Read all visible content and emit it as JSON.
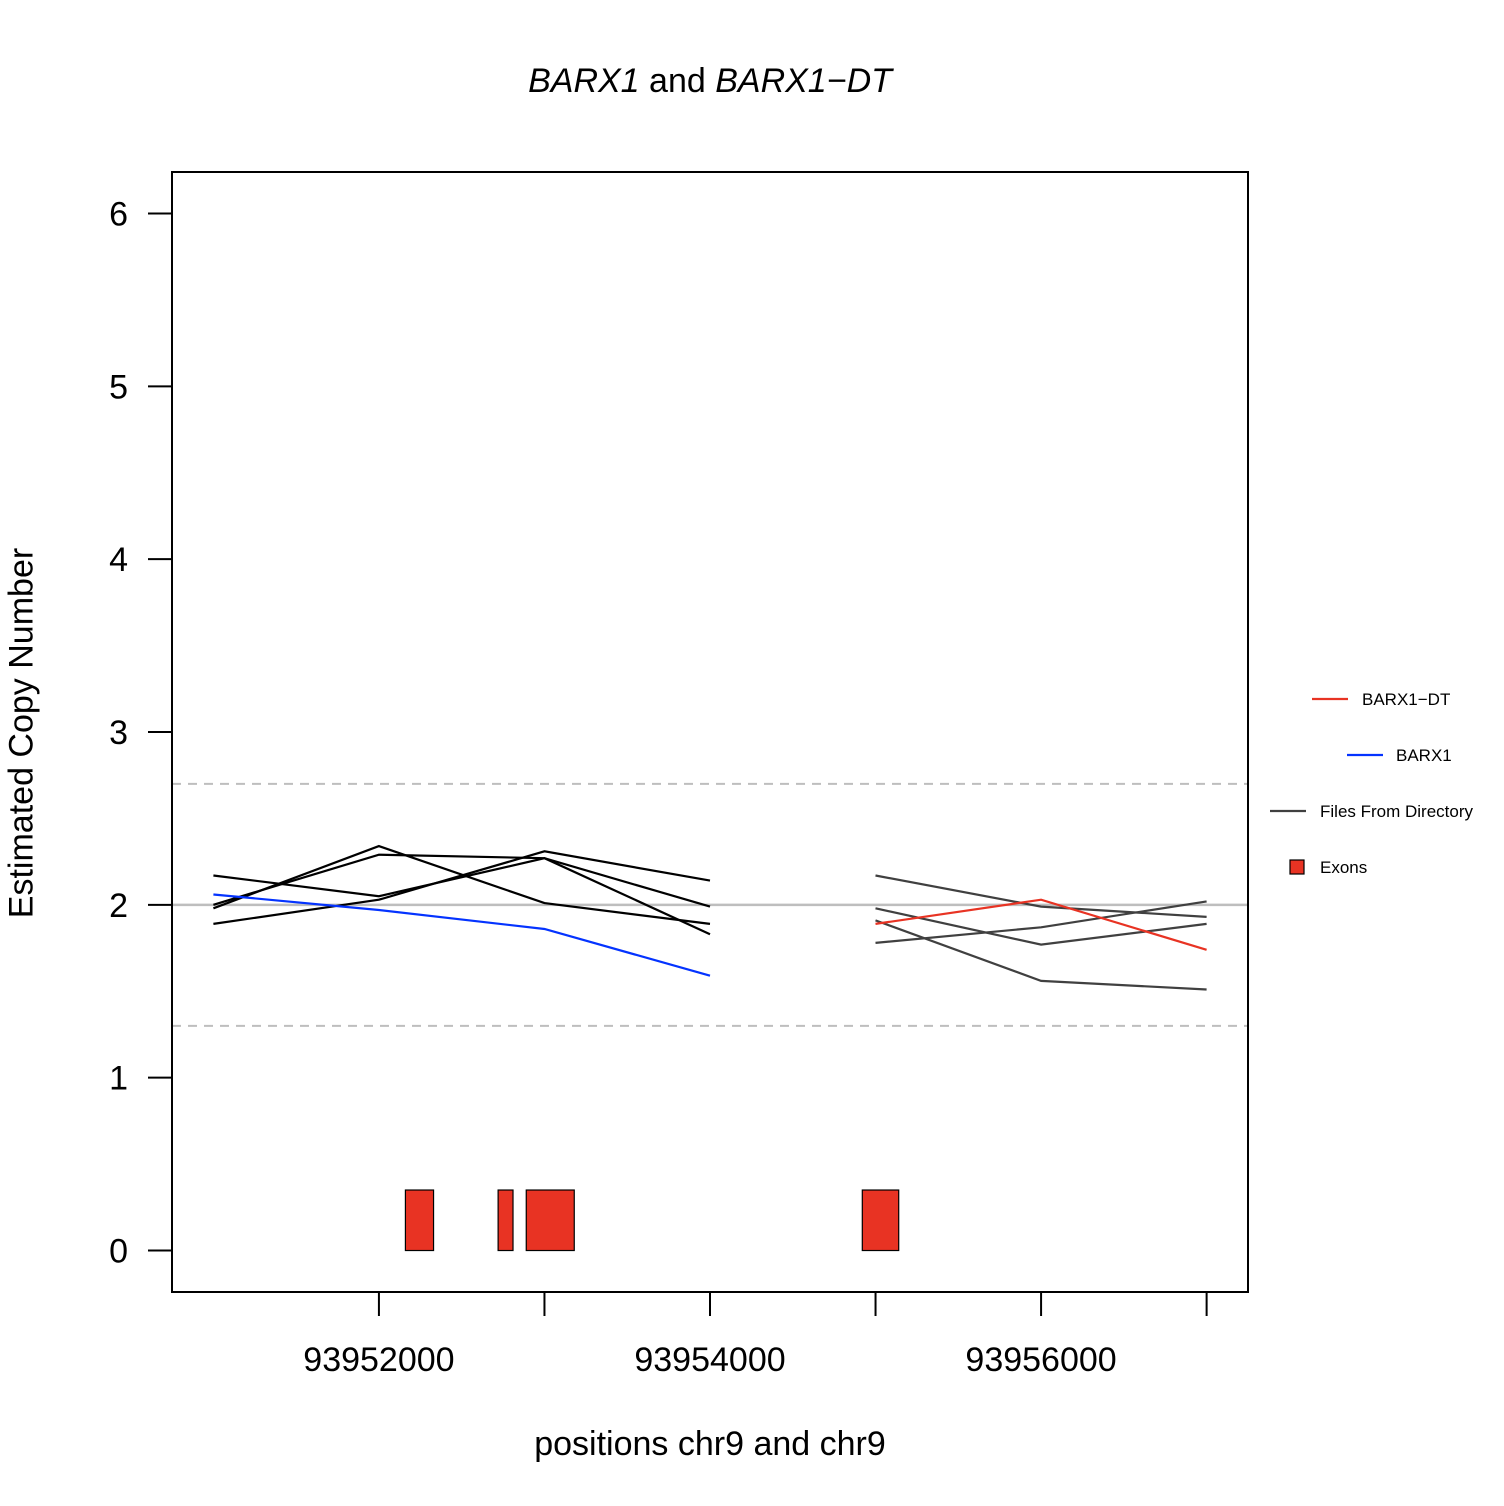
{
  "chart_data": {
    "type": "line",
    "title": {
      "gene1": "BARX1",
      "join": " and ",
      "gene2": "BARX1−DT"
    },
    "xlabel": "positions chr9 and chr9",
    "ylabel": "Estimated Copy Number",
    "xlim": [
      93950750,
      93957250
    ],
    "ylim": [
      -0.24,
      6.24
    ],
    "x_ticks": [
      93952000,
      93953000,
      93954000,
      93955000,
      93956000,
      93957000
    ],
    "x_tick_labels": [
      {
        "value": 93952000,
        "label": "93952000"
      },
      {
        "value": 93954000,
        "label": "93954000"
      },
      {
        "value": 93956000,
        "label": "93956000"
      }
    ],
    "y_ticks": [
      0,
      1,
      2,
      3,
      4,
      5,
      6
    ],
    "reference_lines": [
      {
        "y": 2.0,
        "style": "solid",
        "color": "#bebebe"
      },
      {
        "y": 2.7,
        "style": "dashed",
        "color": "#bebebe"
      },
      {
        "y": 1.3,
        "style": "dashed",
        "color": "#bebebe"
      }
    ],
    "series": [
      {
        "group": "Files From Directory",
        "color": "#000000",
        "x": [
          93951000,
          93952000,
          93953000,
          93954000
        ],
        "y": [
          2.17,
          2.05,
          2.27,
          1.83
        ]
      },
      {
        "group": "Files From Directory",
        "color": "#000000",
        "x": [
          93951000,
          93952000,
          93953000,
          93954000
        ],
        "y": [
          1.98,
          2.34,
          2.01,
          1.89
        ]
      },
      {
        "group": "Files From Directory",
        "color": "#000000",
        "x": [
          93951000,
          93952000,
          93953000,
          93954000
        ],
        "y": [
          2.0,
          2.29,
          2.27,
          1.99
        ]
      },
      {
        "group": "Files From Directory",
        "color": "#000000",
        "x": [
          93951000,
          93952000,
          93953000,
          93954000
        ],
        "y": [
          1.89,
          2.03,
          2.31,
          2.14
        ]
      },
      {
        "name": "BARX1",
        "color": "#0433ff",
        "x": [
          93951000,
          93952000,
          93953000,
          93954000
        ],
        "y": [
          2.06,
          1.97,
          1.86,
          1.59
        ]
      },
      {
        "group": "Files From Directory",
        "color": "#404040",
        "x": [
          93955000,
          93956000,
          93957000
        ],
        "y": [
          2.17,
          1.99,
          1.93
        ]
      },
      {
        "group": "Files From Directory",
        "color": "#404040",
        "x": [
          93955000,
          93956000,
          93957000
        ],
        "y": [
          1.98,
          1.77,
          1.89
        ]
      },
      {
        "group": "Files From Directory",
        "color": "#404040",
        "x": [
          93955000,
          93956000,
          93957000
        ],
        "y": [
          1.91,
          1.56,
          1.51
        ]
      },
      {
        "group": "Files From Directory",
        "color": "#404040",
        "x": [
          93955000,
          93956000,
          93957000
        ],
        "y": [
          1.78,
          1.87,
          2.02
        ]
      },
      {
        "name": "BARX1-DT",
        "color": "#e83323",
        "x": [
          93955000,
          93956000,
          93957000
        ],
        "y": [
          1.89,
          2.03,
          1.74
        ]
      }
    ],
    "exons": [
      {
        "start": 93952160,
        "end": 93952330,
        "height": 0.35
      },
      {
        "start": 93952720,
        "end": 93952810,
        "height": 0.35
      },
      {
        "start": 93952890,
        "end": 93953180,
        "height": 0.35
      },
      {
        "start": 93954920,
        "end": 93955140,
        "height": 0.35
      }
    ],
    "legend": {
      "placement": "right",
      "items": [
        {
          "label": "BARX1−DT",
          "kind": "line",
          "color": "#e83323"
        },
        {
          "label": "BARX1",
          "kind": "line",
          "color": "#0433ff"
        },
        {
          "label": "Files From Directory",
          "kind": "line",
          "color": "#404040"
        },
        {
          "label": "Exons",
          "kind": "box",
          "color": "#e83323"
        }
      ]
    },
    "grid": false
  }
}
